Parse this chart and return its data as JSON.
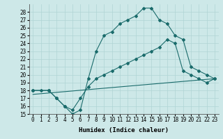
{
  "xlabel": "Humidex (Indice chaleur)",
  "xlim": [
    -0.5,
    23.5
  ],
  "ylim": [
    15,
    29
  ],
  "xticks": [
    0,
    1,
    2,
    3,
    4,
    5,
    6,
    7,
    8,
    9,
    10,
    11,
    12,
    13,
    14,
    15,
    16,
    17,
    18,
    19,
    20,
    21,
    22,
    23
  ],
  "yticks": [
    15,
    16,
    17,
    18,
    19,
    20,
    21,
    22,
    23,
    24,
    25,
    26,
    27,
    28
  ],
  "bg_color": "#cde8e8",
  "line_color": "#1a6b6b",
  "line1_x": [
    0,
    1,
    2,
    3,
    4,
    5,
    6,
    7,
    8,
    9,
    10,
    11,
    12,
    13,
    14,
    15,
    16,
    17,
    18,
    19,
    20,
    21,
    22,
    23
  ],
  "line1_y": [
    18,
    18,
    18,
    17,
    16,
    15,
    15.5,
    19.5,
    23,
    25,
    25.5,
    26.5,
    27,
    27.5,
    28.5,
    28.5,
    27,
    26.5,
    25,
    24.5,
    21,
    20.5,
    20,
    19.5
  ],
  "line2_x": [
    0,
    2,
    3,
    4,
    5,
    6,
    7,
    8,
    9,
    10,
    11,
    12,
    13,
    14,
    15,
    16,
    17,
    18,
    19,
    20,
    21,
    22,
    23
  ],
  "line2_y": [
    18,
    18,
    17,
    16,
    15.5,
    17,
    18.5,
    19.5,
    20,
    20.5,
    21,
    21.5,
    22,
    22.5,
    23,
    23.5,
    24.5,
    24,
    20.5,
    20,
    19.5,
    19,
    19.5
  ],
  "line3_x": [
    0,
    23
  ],
  "line3_y": [
    17.5,
    19.5
  ],
  "marker": "D",
  "markersize": 2.0,
  "linewidth": 0.8,
  "grid_color": "#b0d4d4",
  "label_fontsize": 6.5,
  "tick_fontsize": 5.5
}
